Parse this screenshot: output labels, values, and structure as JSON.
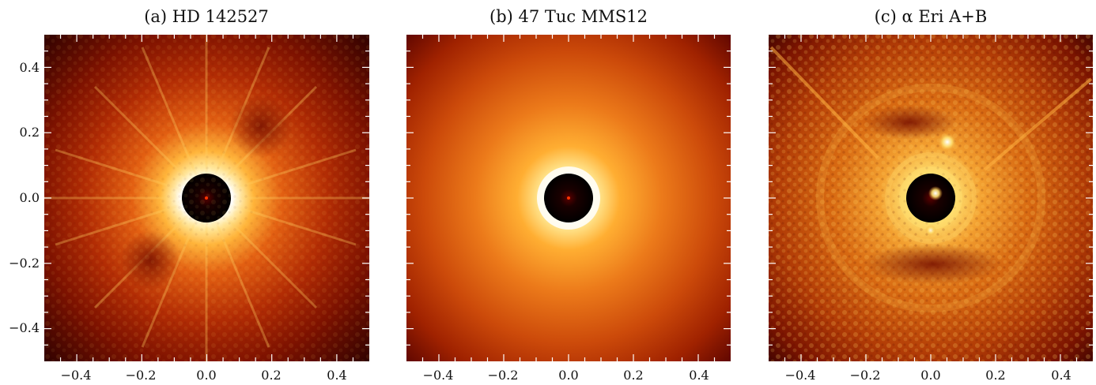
{
  "figure": {
    "panels": [
      {
        "id": "a",
        "title": "(a) HD 142527",
        "y_ticks": [
          "0.4",
          "0.2",
          "0.0",
          "−0.2",
          "−0.4"
        ],
        "x_ticks": [
          "−0.4",
          "−0.2",
          "0.0",
          "0.2",
          "0.4"
        ],
        "colormap": [
          "#2a0000",
          "#7a0c00",
          "#c43a05",
          "#f08a1a",
          "#ffd860",
          "#ffffff"
        ],
        "has_y_tick_labels": true
      },
      {
        "id": "b",
        "title": "(b) 47 Tuc MMS12",
        "y_ticks": [],
        "x_ticks": [
          "−0.4",
          "−0.2",
          "0.0",
          "0.2",
          "0.4"
        ],
        "colormap": [
          "#4a0000",
          "#8c1500",
          "#cc4208",
          "#f28a1e",
          "#ffcc55",
          "#ffffff"
        ],
        "has_y_tick_labels": false
      },
      {
        "id": "c",
        "title": "(c) α Eri A+B",
        "y_ticks": [],
        "x_ticks": [
          "−0.4",
          "−0.2",
          "0.0",
          "0.2",
          "0.4"
        ],
        "colormap": [
          "#3a0000",
          "#8a1800",
          "#cc5008",
          "#f0a030",
          "#ffe070",
          "#ffffff"
        ],
        "has_y_tick_labels": false
      }
    ]
  }
}
